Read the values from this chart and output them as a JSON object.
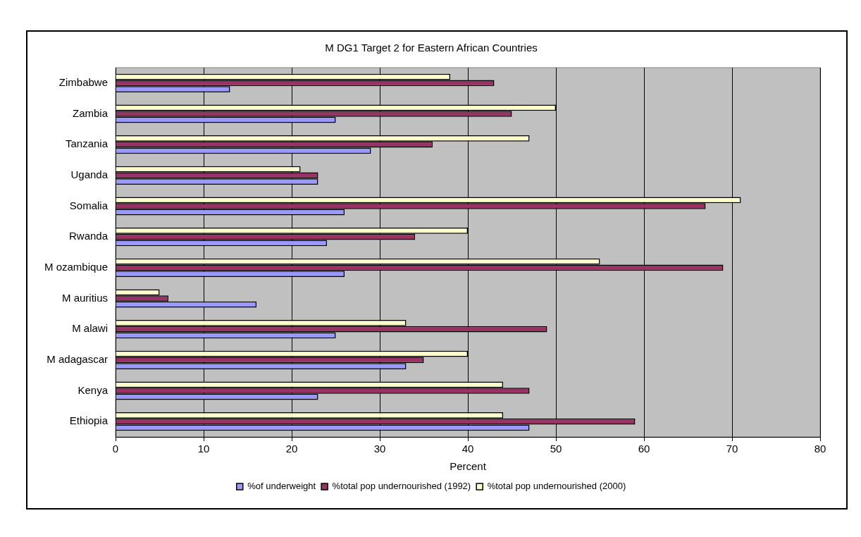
{
  "chart_data": {
    "type": "bar",
    "orientation": "horizontal",
    "title": "M DG1 Target 2 for Eastern African Countries",
    "xlabel": "Percent",
    "categories": [
      "Zimbabwe",
      "Zambia",
      "Tanzania",
      "Uganda",
      "Somalia",
      "Rwanda",
      "M ozambique",
      "M auritius",
      "M alawi",
      "M adagascar",
      "Kenya",
      "Ethiopia"
    ],
    "series": [
      {
        "name": "%of underweight",
        "color": "#9999ff",
        "values": [
          13,
          25,
          29,
          23,
          26,
          24,
          26,
          16,
          25,
          33,
          23,
          47
        ]
      },
      {
        "name": "%total pop undernourished (1992)",
        "color": "#993366",
        "values": [
          43,
          45,
          36,
          23,
          67,
          34,
          69,
          6,
          49,
          35,
          47,
          59
        ]
      },
      {
        "name": "%total pop undernourished (2000)",
        "color": "#ffffcc",
        "values": [
          38,
          50,
          47,
          21,
          71,
          40,
          55,
          5,
          33,
          40,
          44,
          44
        ]
      }
    ],
    "xlim": [
      0,
      80
    ],
    "xticks": [
      0,
      10,
      20,
      30,
      40,
      50,
      60,
      70,
      80
    ],
    "grid": "x",
    "legend": "bottom"
  }
}
